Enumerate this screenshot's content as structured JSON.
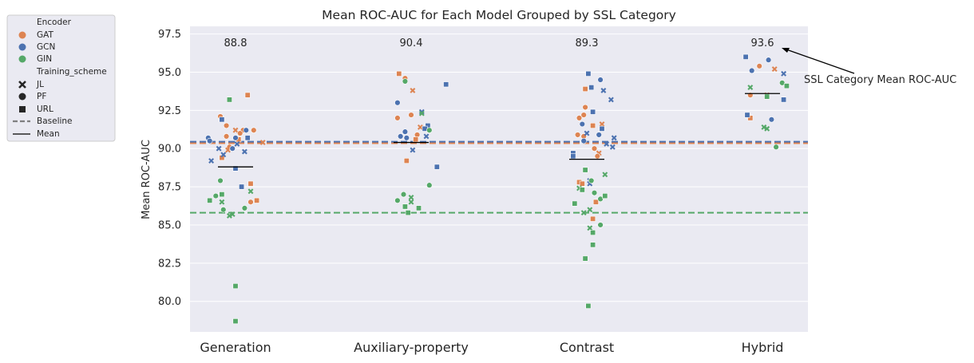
{
  "chart_data": {
    "type": "scatter",
    "title": "Mean ROC-AUC for Each Model Grouped by SSL Category",
    "xlabel": "",
    "ylabel": "Mean ROC-AUC",
    "categories": [
      "Generation",
      "Auxiliary-property",
      "Contrast",
      "Hybrid"
    ],
    "ylim": [
      78.0,
      98.0
    ],
    "yticks": [
      "80.0",
      "82.5",
      "85.0",
      "87.5",
      "90.0",
      "92.5",
      "95.0",
      "97.5"
    ],
    "ytick_values": [
      80.0,
      82.5,
      85.0,
      87.5,
      90.0,
      92.5,
      95.0,
      97.5
    ],
    "grid": true,
    "category_means": [
      88.8,
      90.4,
      89.3,
      93.6
    ],
    "category_mean_labels": [
      "88.8",
      "90.4",
      "89.3",
      "93.6"
    ],
    "annotation": "SSL Category Mean ROC-AUC",
    "baselines": [
      {
        "encoder": "GAT",
        "value": 90.35
      },
      {
        "encoder": "GCN",
        "value": 90.45
      },
      {
        "encoder": "GIN",
        "value": 85.8
      }
    ],
    "colors": {
      "GAT": "#dd8452",
      "GCN": "#4c72b0",
      "GIN": "#55a868",
      "baseline_legend": "#808080",
      "mean": "#000000",
      "background": "#eaeaf2"
    },
    "legend": {
      "position": "outside-upper-left",
      "encoder_title": "Encoder",
      "encoders": [
        "GAT",
        "GCN",
        "GIN"
      ],
      "scheme_title": "Training_scheme",
      "schemes": [
        "JL",
        "PF",
        "URL"
      ],
      "baseline_label": "Baseline",
      "mean_label": "Mean"
    },
    "points": [
      {
        "cat": 0,
        "jit": -0.1,
        "y": 92.1,
        "enc": "GAT",
        "sch": "PF"
      },
      {
        "cat": 0,
        "jit": -0.06,
        "y": 91.5,
        "enc": "GAT",
        "sch": "PF"
      },
      {
        "cat": 0,
        "jit": 0.0,
        "y": 91.2,
        "enc": "GAT",
        "sch": "JL"
      },
      {
        "cat": 0,
        "jit": 0.05,
        "y": 91.2,
        "enc": "GAT",
        "sch": "PF"
      },
      {
        "cat": 0,
        "jit": 0.12,
        "y": 91.2,
        "enc": "GAT",
        "sch": "PF"
      },
      {
        "cat": 0,
        "jit": 0.03,
        "y": 91.0,
        "enc": "GAT",
        "sch": "PF"
      },
      {
        "cat": 0,
        "jit": -0.06,
        "y": 90.8,
        "enc": "GAT",
        "sch": "PF"
      },
      {
        "cat": 0,
        "jit": 0.02,
        "y": 90.6,
        "enc": "GAT",
        "sch": "URL"
      },
      {
        "cat": 0,
        "jit": 0.18,
        "y": 90.4,
        "enc": "GAT",
        "sch": "JL"
      },
      {
        "cat": 0,
        "jit": -0.04,
        "y": 90.1,
        "enc": "GAT",
        "sch": "PF"
      },
      {
        "cat": 0,
        "jit": -0.05,
        "y": 89.9,
        "enc": "GAT",
        "sch": "JL"
      },
      {
        "cat": 0,
        "jit": -0.09,
        "y": 89.4,
        "enc": "GAT",
        "sch": "URL"
      },
      {
        "cat": 0,
        "jit": 0.08,
        "y": 93.5,
        "enc": "GAT",
        "sch": "URL"
      },
      {
        "cat": 0,
        "jit": 0.1,
        "y": 87.7,
        "enc": "GAT",
        "sch": "URL"
      },
      {
        "cat": 0,
        "jit": 0.14,
        "y": 86.6,
        "enc": "GAT",
        "sch": "URL"
      },
      {
        "cat": 0,
        "jit": 0.1,
        "y": 86.5,
        "enc": "GAT",
        "sch": "PF"
      },
      {
        "cat": 0,
        "jit": -0.18,
        "y": 90.7,
        "enc": "GCN",
        "sch": "PF"
      },
      {
        "cat": 0,
        "jit": -0.17,
        "y": 90.5,
        "enc": "GCN",
        "sch": "PF"
      },
      {
        "cat": 0,
        "jit": -0.09,
        "y": 91.9,
        "enc": "GCN",
        "sch": "URL"
      },
      {
        "cat": 0,
        "jit": 0.0,
        "y": 90.7,
        "enc": "GCN",
        "sch": "PF"
      },
      {
        "cat": 0,
        "jit": 0.07,
        "y": 91.2,
        "enc": "GCN",
        "sch": "PF"
      },
      {
        "cat": 0,
        "jit": 0.08,
        "y": 90.7,
        "enc": "GCN",
        "sch": "URL"
      },
      {
        "cat": 0,
        "jit": 0.01,
        "y": 90.3,
        "enc": "GCN",
        "sch": "JL"
      },
      {
        "cat": 0,
        "jit": -0.11,
        "y": 90.0,
        "enc": "GCN",
        "sch": "JL"
      },
      {
        "cat": 0,
        "jit": -0.02,
        "y": 90.0,
        "enc": "GCN",
        "sch": "PF"
      },
      {
        "cat": 0,
        "jit": 0.06,
        "y": 89.8,
        "enc": "GCN",
        "sch": "JL"
      },
      {
        "cat": 0,
        "jit": -0.08,
        "y": 89.6,
        "enc": "GCN",
        "sch": "JL"
      },
      {
        "cat": 0,
        "jit": -0.16,
        "y": 89.2,
        "enc": "GCN",
        "sch": "JL"
      },
      {
        "cat": 0,
        "jit": 0.0,
        "y": 88.7,
        "enc": "GCN",
        "sch": "URL"
      },
      {
        "cat": 0,
        "jit": 0.04,
        "y": 87.5,
        "enc": "GCN",
        "sch": "URL"
      },
      {
        "cat": 0,
        "jit": -0.04,
        "y": 93.2,
        "enc": "GIN",
        "sch": "URL"
      },
      {
        "cat": 0,
        "jit": -0.1,
        "y": 87.9,
        "enc": "GIN",
        "sch": "PF"
      },
      {
        "cat": 0,
        "jit": 0.1,
        "y": 87.2,
        "enc": "GIN",
        "sch": "JL"
      },
      {
        "cat": 0,
        "jit": -0.09,
        "y": 87.0,
        "enc": "GIN",
        "sch": "URL"
      },
      {
        "cat": 0,
        "jit": -0.13,
        "y": 86.9,
        "enc": "GIN",
        "sch": "PF"
      },
      {
        "cat": 0,
        "jit": -0.17,
        "y": 86.6,
        "enc": "GIN",
        "sch": "URL"
      },
      {
        "cat": 0,
        "jit": -0.09,
        "y": 86.5,
        "enc": "GIN",
        "sch": "JL"
      },
      {
        "cat": 0,
        "jit": 0.06,
        "y": 86.1,
        "enc": "GIN",
        "sch": "PF"
      },
      {
        "cat": 0,
        "jit": -0.08,
        "y": 86.0,
        "enc": "GIN",
        "sch": "PF"
      },
      {
        "cat": 0,
        "jit": -0.02,
        "y": 85.7,
        "enc": "GIN",
        "sch": "JL"
      },
      {
        "cat": 0,
        "jit": -0.04,
        "y": 85.6,
        "enc": "GIN",
        "sch": "JL"
      },
      {
        "cat": 0,
        "jit": 0.0,
        "y": 81.0,
        "enc": "GIN",
        "sch": "URL"
      },
      {
        "cat": 0,
        "jit": 0.0,
        "y": 78.7,
        "enc": "GIN",
        "sch": "URL"
      },
      {
        "cat": 1,
        "jit": -0.08,
        "y": 94.9,
        "enc": "GAT",
        "sch": "URL"
      },
      {
        "cat": 1,
        "jit": -0.04,
        "y": 94.6,
        "enc": "GAT",
        "sch": "PF"
      },
      {
        "cat": 1,
        "jit": 0.0,
        "y": 92.2,
        "enc": "GAT",
        "sch": "PF"
      },
      {
        "cat": 1,
        "jit": -0.09,
        "y": 92.0,
        "enc": "GAT",
        "sch": "PF"
      },
      {
        "cat": 1,
        "jit": 0.01,
        "y": 93.8,
        "enc": "GAT",
        "sch": "JL"
      },
      {
        "cat": 1,
        "jit": 0.06,
        "y": 91.4,
        "enc": "GAT",
        "sch": "JL"
      },
      {
        "cat": 1,
        "jit": 0.04,
        "y": 90.9,
        "enc": "GAT",
        "sch": "PF"
      },
      {
        "cat": 1,
        "jit": 0.03,
        "y": 90.6,
        "enc": "GAT",
        "sch": "URL"
      },
      {
        "cat": 1,
        "jit": -0.03,
        "y": 89.2,
        "enc": "GAT",
        "sch": "URL"
      },
      {
        "cat": 1,
        "jit": 0.1,
        "y": 91.3,
        "enc": "GAT",
        "sch": "PF"
      },
      {
        "cat": 1,
        "jit": 0.23,
        "y": 94.2,
        "enc": "GCN",
        "sch": "URL"
      },
      {
        "cat": 1,
        "jit": -0.09,
        "y": 93.0,
        "enc": "GCN",
        "sch": "PF"
      },
      {
        "cat": 1,
        "jit": 0.07,
        "y": 92.4,
        "enc": "GCN",
        "sch": "JL"
      },
      {
        "cat": 1,
        "jit": 0.11,
        "y": 91.5,
        "enc": "GCN",
        "sch": "URL"
      },
      {
        "cat": 1,
        "jit": 0.09,
        "y": 91.3,
        "enc": "GCN",
        "sch": "URL"
      },
      {
        "cat": 1,
        "jit": -0.04,
        "y": 91.1,
        "enc": "GCN",
        "sch": "PF"
      },
      {
        "cat": 1,
        "jit": -0.07,
        "y": 90.8,
        "enc": "GCN",
        "sch": "PF"
      },
      {
        "cat": 1,
        "jit": -0.03,
        "y": 90.7,
        "enc": "GCN",
        "sch": "PF"
      },
      {
        "cat": 1,
        "jit": 0.1,
        "y": 90.8,
        "enc": "GCN",
        "sch": "JL"
      },
      {
        "cat": 1,
        "jit": 0.01,
        "y": 89.9,
        "enc": "GCN",
        "sch": "JL"
      },
      {
        "cat": 1,
        "jit": 0.17,
        "y": 88.8,
        "enc": "GCN",
        "sch": "URL"
      },
      {
        "cat": 1,
        "jit": -0.04,
        "y": 94.4,
        "enc": "GIN",
        "sch": "PF"
      },
      {
        "cat": 1,
        "jit": 0.07,
        "y": 92.3,
        "enc": "GIN",
        "sch": "JL"
      },
      {
        "cat": 1,
        "jit": 0.12,
        "y": 91.2,
        "enc": "GIN",
        "sch": "PF"
      },
      {
        "cat": 1,
        "jit": 0.12,
        "y": 87.6,
        "enc": "GIN",
        "sch": "PF"
      },
      {
        "cat": 1,
        "jit": -0.05,
        "y": 87.0,
        "enc": "GIN",
        "sch": "PF"
      },
      {
        "cat": 1,
        "jit": 0.0,
        "y": 86.8,
        "enc": "GIN",
        "sch": "JL"
      },
      {
        "cat": 1,
        "jit": -0.09,
        "y": 86.6,
        "enc": "GIN",
        "sch": "PF"
      },
      {
        "cat": 1,
        "jit": 0.0,
        "y": 86.5,
        "enc": "GIN",
        "sch": "JL"
      },
      {
        "cat": 1,
        "jit": -0.04,
        "y": 86.2,
        "enc": "GIN",
        "sch": "URL"
      },
      {
        "cat": 1,
        "jit": 0.05,
        "y": 86.1,
        "enc": "GIN",
        "sch": "URL"
      },
      {
        "cat": 1,
        "jit": -0.02,
        "y": 85.8,
        "enc": "GIN",
        "sch": "URL"
      },
      {
        "cat": 2,
        "jit": -0.01,
        "y": 93.9,
        "enc": "GAT",
        "sch": "URL"
      },
      {
        "cat": 2,
        "jit": -0.01,
        "y": 92.7,
        "enc": "GAT",
        "sch": "PF"
      },
      {
        "cat": 2,
        "jit": -0.02,
        "y": 92.2,
        "enc": "GAT",
        "sch": "PF"
      },
      {
        "cat": 2,
        "jit": -0.05,
        "y": 92.0,
        "enc": "GAT",
        "sch": "PF"
      },
      {
        "cat": 2,
        "jit": 0.04,
        "y": 91.5,
        "enc": "GAT",
        "sch": "URL"
      },
      {
        "cat": 2,
        "jit": 0.1,
        "y": 91.6,
        "enc": "GAT",
        "sch": "JL"
      },
      {
        "cat": 2,
        "jit": -0.06,
        "y": 90.9,
        "enc": "GAT",
        "sch": "PF"
      },
      {
        "cat": 2,
        "jit": -0.02,
        "y": 90.8,
        "enc": "GAT",
        "sch": "PF"
      },
      {
        "cat": 2,
        "jit": 0.05,
        "y": 90.0,
        "enc": "GAT",
        "sch": "PF"
      },
      {
        "cat": 2,
        "jit": 0.08,
        "y": 89.7,
        "enc": "GAT",
        "sch": "JL"
      },
      {
        "cat": 2,
        "jit": 0.07,
        "y": 89.5,
        "enc": "GAT",
        "sch": "PF"
      },
      {
        "cat": 2,
        "jit": -0.05,
        "y": 87.8,
        "enc": "GAT",
        "sch": "URL"
      },
      {
        "cat": 2,
        "jit": -0.03,
        "y": 87.7,
        "enc": "GAT",
        "sch": "URL"
      },
      {
        "cat": 2,
        "jit": 0.06,
        "y": 86.5,
        "enc": "GAT",
        "sch": "URL"
      },
      {
        "cat": 2,
        "jit": 0.04,
        "y": 85.4,
        "enc": "GAT",
        "sch": "URL"
      },
      {
        "cat": 2,
        "jit": 0.01,
        "y": 94.9,
        "enc": "GCN",
        "sch": "URL"
      },
      {
        "cat": 2,
        "jit": 0.09,
        "y": 94.5,
        "enc": "GCN",
        "sch": "PF"
      },
      {
        "cat": 2,
        "jit": 0.03,
        "y": 94.0,
        "enc": "GCN",
        "sch": "URL"
      },
      {
        "cat": 2,
        "jit": 0.11,
        "y": 93.8,
        "enc": "GCN",
        "sch": "JL"
      },
      {
        "cat": 2,
        "jit": 0.16,
        "y": 93.2,
        "enc": "GCN",
        "sch": "JL"
      },
      {
        "cat": 2,
        "jit": 0.04,
        "y": 92.4,
        "enc": "GCN",
        "sch": "URL"
      },
      {
        "cat": 2,
        "jit": -0.03,
        "y": 91.6,
        "enc": "GCN",
        "sch": "PF"
      },
      {
        "cat": 2,
        "jit": 0.1,
        "y": 91.3,
        "enc": "GCN",
        "sch": "URL"
      },
      {
        "cat": 2,
        "jit": 0.0,
        "y": 91.0,
        "enc": "GCN",
        "sch": "JL"
      },
      {
        "cat": 2,
        "jit": 0.08,
        "y": 90.9,
        "enc": "GCN",
        "sch": "PF"
      },
      {
        "cat": 2,
        "jit": 0.18,
        "y": 90.7,
        "enc": "GCN",
        "sch": "JL"
      },
      {
        "cat": 2,
        "jit": -0.02,
        "y": 90.5,
        "enc": "GCN",
        "sch": "PF"
      },
      {
        "cat": 2,
        "jit": 0.13,
        "y": 90.3,
        "enc": "GCN",
        "sch": "JL"
      },
      {
        "cat": 2,
        "jit": 0.17,
        "y": 90.1,
        "enc": "GCN",
        "sch": "JL"
      },
      {
        "cat": 2,
        "jit": -0.09,
        "y": 89.7,
        "enc": "GCN",
        "sch": "URL"
      },
      {
        "cat": 2,
        "jit": -0.09,
        "y": 89.5,
        "enc": "GCN",
        "sch": "URL"
      },
      {
        "cat": 2,
        "jit": 0.02,
        "y": 87.9,
        "enc": "GCN",
        "sch": "JL"
      },
      {
        "cat": 2,
        "jit": 0.02,
        "y": 87.7,
        "enc": "GCN",
        "sch": "JL"
      },
      {
        "cat": 2,
        "jit": -0.01,
        "y": 88.6,
        "enc": "GIN",
        "sch": "URL"
      },
      {
        "cat": 2,
        "jit": 0.12,
        "y": 88.3,
        "enc": "GIN",
        "sch": "JL"
      },
      {
        "cat": 2,
        "jit": 0.03,
        "y": 87.9,
        "enc": "GIN",
        "sch": "PF"
      },
      {
        "cat": 2,
        "jit": 0.05,
        "y": 87.1,
        "enc": "GIN",
        "sch": "PF"
      },
      {
        "cat": 2,
        "jit": -0.05,
        "y": 87.4,
        "enc": "GIN",
        "sch": "JL"
      },
      {
        "cat": 2,
        "jit": -0.03,
        "y": 87.3,
        "enc": "GIN",
        "sch": "URL"
      },
      {
        "cat": 2,
        "jit": 0.09,
        "y": 86.7,
        "enc": "GIN",
        "sch": "PF"
      },
      {
        "cat": 2,
        "jit": -0.08,
        "y": 86.4,
        "enc": "GIN",
        "sch": "URL"
      },
      {
        "cat": 2,
        "jit": 0.02,
        "y": 86.0,
        "enc": "GIN",
        "sch": "JL"
      },
      {
        "cat": 2,
        "jit": -0.02,
        "y": 85.8,
        "enc": "GIN",
        "sch": "JL"
      },
      {
        "cat": 2,
        "jit": 0.12,
        "y": 86.9,
        "enc": "GIN",
        "sch": "URL"
      },
      {
        "cat": 2,
        "jit": 0.02,
        "y": 84.8,
        "enc": "GIN",
        "sch": "JL"
      },
      {
        "cat": 2,
        "jit": 0.09,
        "y": 85.0,
        "enc": "GIN",
        "sch": "PF"
      },
      {
        "cat": 2,
        "jit": 0.04,
        "y": 84.5,
        "enc": "GIN",
        "sch": "URL"
      },
      {
        "cat": 2,
        "jit": 0.04,
        "y": 83.7,
        "enc": "GIN",
        "sch": "URL"
      },
      {
        "cat": 2,
        "jit": -0.01,
        "y": 82.8,
        "enc": "GIN",
        "sch": "URL"
      },
      {
        "cat": 2,
        "jit": 0.01,
        "y": 79.7,
        "enc": "GIN",
        "sch": "URL"
      },
      {
        "cat": 3,
        "jit": -0.02,
        "y": 95.4,
        "enc": "GAT",
        "sch": "PF"
      },
      {
        "cat": 3,
        "jit": 0.08,
        "y": 95.2,
        "enc": "GAT",
        "sch": "JL"
      },
      {
        "cat": 3,
        "jit": 0.03,
        "y": 93.5,
        "enc": "GAT",
        "sch": "JL"
      },
      {
        "cat": 3,
        "jit": -0.08,
        "y": 93.5,
        "enc": "GAT",
        "sch": "PF"
      },
      {
        "cat": 3,
        "jit": -0.08,
        "y": 92.0,
        "enc": "GAT",
        "sch": "URL"
      },
      {
        "cat": 3,
        "jit": -0.11,
        "y": 96.0,
        "enc": "GCN",
        "sch": "URL"
      },
      {
        "cat": 3,
        "jit": 0.04,
        "y": 95.8,
        "enc": "GCN",
        "sch": "PF"
      },
      {
        "cat": 3,
        "jit": -0.07,
        "y": 95.1,
        "enc": "GCN",
        "sch": "PF"
      },
      {
        "cat": 3,
        "jit": 0.14,
        "y": 94.9,
        "enc": "GCN",
        "sch": "JL"
      },
      {
        "cat": 3,
        "jit": -0.1,
        "y": 92.2,
        "enc": "GCN",
        "sch": "URL"
      },
      {
        "cat": 3,
        "jit": 0.14,
        "y": 93.2,
        "enc": "GCN",
        "sch": "URL"
      },
      {
        "cat": 3,
        "jit": 0.06,
        "y": 91.9,
        "enc": "GCN",
        "sch": "PF"
      },
      {
        "cat": 3,
        "jit": -0.08,
        "y": 94.0,
        "enc": "GIN",
        "sch": "JL"
      },
      {
        "cat": 3,
        "jit": 0.13,
        "y": 94.3,
        "enc": "GIN",
        "sch": "PF"
      },
      {
        "cat": 3,
        "jit": 0.16,
        "y": 94.1,
        "enc": "GIN",
        "sch": "URL"
      },
      {
        "cat": 3,
        "jit": 0.03,
        "y": 93.4,
        "enc": "GIN",
        "sch": "URL"
      },
      {
        "cat": 3,
        "jit": 0.03,
        "y": 91.3,
        "enc": "GIN",
        "sch": "JL"
      },
      {
        "cat": 3,
        "jit": 0.01,
        "y": 91.4,
        "enc": "GIN",
        "sch": "JL"
      },
      {
        "cat": 3,
        "jit": 0.09,
        "y": 90.1,
        "enc": "GIN",
        "sch": "PF"
      }
    ]
  }
}
